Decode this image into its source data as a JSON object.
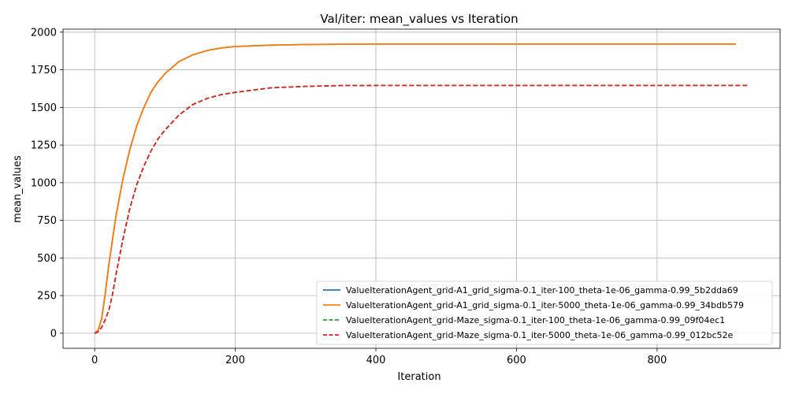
{
  "chart_data": {
    "type": "line",
    "title": "Val/iter: mean_values vs Iteration",
    "xlabel": "Iteration",
    "ylabel": "mean_values",
    "xlim": [
      -45,
      975
    ],
    "ylim": [
      -100,
      2020
    ],
    "xticks": [
      0,
      200,
      400,
      600,
      800
    ],
    "yticks": [
      0,
      250,
      500,
      750,
      1000,
      1250,
      1500,
      1750,
      2000
    ],
    "grid": true,
    "legend_position": "lower-right",
    "series": [
      {
        "name": "ValueIterationAgent_grid-A1_grid_sigma-0.1_iter-100_theta-1e-06_gamma-0.99_5b2dda69",
        "color": "#1f77b4",
        "dash": "solid",
        "x": [
          0,
          5,
          10,
          15,
          20,
          30,
          40,
          50,
          60,
          70,
          80,
          90,
          100,
          120,
          140,
          160,
          180,
          200,
          250,
          300,
          350,
          400,
          500,
          600,
          700,
          800,
          912
        ],
        "y": [
          0,
          20,
          100,
          260,
          450,
          770,
          1020,
          1220,
          1380,
          1500,
          1600,
          1670,
          1725,
          1805,
          1850,
          1878,
          1895,
          1905,
          1914,
          1918,
          1920,
          1921,
          1921,
          1921,
          1921,
          1921,
          1921
        ]
      },
      {
        "name": "ValueIterationAgent_grid-A1_grid_sigma-0.1_iter-5000_theta-1e-06_gamma-0.99_34bdb579",
        "color": "#ff7f0e",
        "dash": "solid",
        "x": [
          0,
          5,
          10,
          15,
          20,
          30,
          40,
          50,
          60,
          70,
          80,
          90,
          100,
          120,
          140,
          160,
          180,
          200,
          250,
          300,
          350,
          400,
          500,
          600,
          700,
          800,
          912
        ],
        "y": [
          0,
          20,
          100,
          260,
          450,
          770,
          1020,
          1220,
          1380,
          1500,
          1600,
          1670,
          1725,
          1805,
          1850,
          1878,
          1895,
          1905,
          1914,
          1918,
          1920,
          1921,
          1921,
          1921,
          1921,
          1921,
          1921
        ]
      },
      {
        "name": "ValueIterationAgent_grid-Maze_sigma-0.1_iter-100_theta-1e-06_gamma-0.99_09f04ec1",
        "color": "#2ca02c",
        "dash": "dashed",
        "x": [
          0,
          5,
          10,
          15,
          20,
          25,
          30,
          40,
          50,
          60,
          70,
          80,
          90,
          100,
          120,
          140,
          160,
          180,
          200,
          250,
          300,
          350,
          400,
          500,
          600,
          700,
          800,
          930
        ],
        "y": [
          0,
          10,
          40,
          90,
          150,
          250,
          380,
          620,
          830,
          990,
          1110,
          1210,
          1290,
          1350,
          1450,
          1520,
          1560,
          1585,
          1600,
          1630,
          1640,
          1645,
          1646,
          1646,
          1646,
          1646,
          1646,
          1646
        ]
      },
      {
        "name": "ValueIterationAgent_grid-Maze_sigma-0.1_iter-5000_theta-1e-06_gamma-0.99_012bc52e",
        "color": "#d62728",
        "dash": "dashed",
        "x": [
          0,
          5,
          10,
          15,
          20,
          25,
          30,
          40,
          50,
          60,
          70,
          80,
          90,
          100,
          120,
          140,
          160,
          180,
          200,
          250,
          300,
          350,
          400,
          500,
          600,
          700,
          800,
          930
        ],
        "y": [
          0,
          10,
          40,
          90,
          150,
          250,
          380,
          620,
          830,
          990,
          1110,
          1210,
          1290,
          1350,
          1450,
          1520,
          1560,
          1585,
          1600,
          1630,
          1640,
          1645,
          1646,
          1646,
          1646,
          1646,
          1646,
          1646
        ]
      }
    ]
  }
}
